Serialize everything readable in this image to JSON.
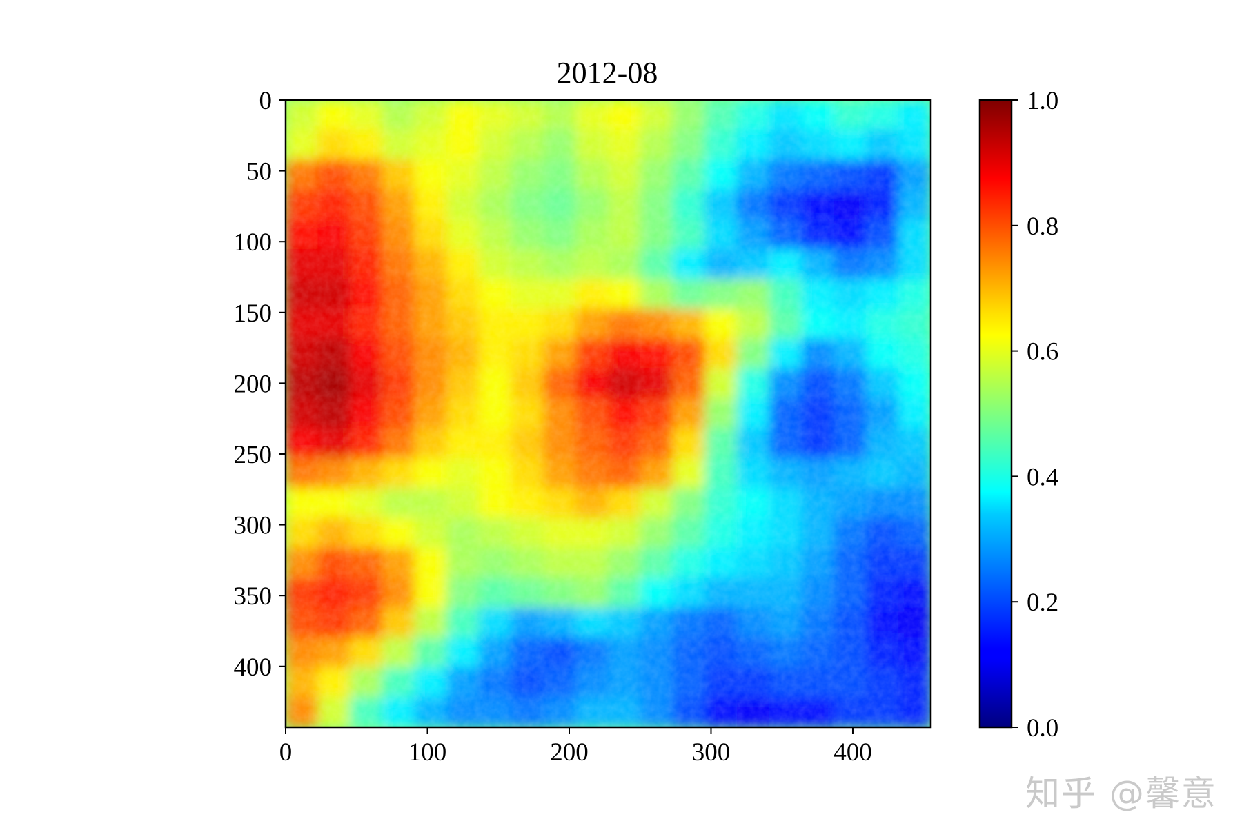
{
  "chart_data": {
    "type": "heatmap",
    "title": "2012-08",
    "xlabel": "",
    "ylabel": "",
    "x_ticks": [
      0,
      100,
      200,
      300,
      400
    ],
    "y_ticks": [
      0,
      50,
      100,
      150,
      200,
      250,
      300,
      350,
      400
    ],
    "xlim": [
      0,
      455
    ],
    "ylim": [
      443,
      0
    ],
    "colormap": "jet",
    "colorbar": {
      "ticks": [
        "0.0",
        "0.2",
        "0.4",
        "0.6",
        "0.8",
        "1.0"
      ],
      "vmin": 0.0,
      "vmax": 1.0
    },
    "grid": false,
    "grid_values": [
      [
        0.58,
        0.62,
        0.6,
        0.55,
        0.58,
        0.62,
        0.6,
        0.58,
        0.55,
        0.6,
        0.62,
        0.58,
        0.52,
        0.45,
        0.4,
        0.35,
        0.38,
        0.42,
        0.4,
        0.36
      ],
      [
        0.6,
        0.66,
        0.64,
        0.58,
        0.6,
        0.62,
        0.58,
        0.55,
        0.52,
        0.58,
        0.6,
        0.55,
        0.5,
        0.42,
        0.36,
        0.32,
        0.34,
        0.36,
        0.32,
        0.35
      ],
      [
        0.76,
        0.8,
        0.76,
        0.68,
        0.62,
        0.6,
        0.56,
        0.52,
        0.5,
        0.55,
        0.58,
        0.52,
        0.46,
        0.38,
        0.3,
        0.24,
        0.22,
        0.2,
        0.18,
        0.28
      ],
      [
        0.82,
        0.84,
        0.8,
        0.72,
        0.64,
        0.58,
        0.54,
        0.5,
        0.48,
        0.52,
        0.56,
        0.5,
        0.42,
        0.32,
        0.24,
        0.18,
        0.14,
        0.12,
        0.16,
        0.3
      ],
      [
        0.86,
        0.88,
        0.82,
        0.74,
        0.66,
        0.6,
        0.56,
        0.52,
        0.5,
        0.54,
        0.56,
        0.5,
        0.44,
        0.34,
        0.28,
        0.22,
        0.16,
        0.14,
        0.2,
        0.34
      ],
      [
        0.9,
        0.9,
        0.84,
        0.76,
        0.7,
        0.64,
        0.58,
        0.56,
        0.54,
        0.56,
        0.54,
        0.46,
        0.36,
        0.3,
        0.32,
        0.36,
        0.3,
        0.24,
        0.26,
        0.34
      ],
      [
        0.92,
        0.92,
        0.86,
        0.78,
        0.72,
        0.66,
        0.62,
        0.6,
        0.6,
        0.64,
        0.62,
        0.54,
        0.48,
        0.5,
        0.52,
        0.44,
        0.36,
        0.34,
        0.36,
        0.4
      ],
      [
        0.9,
        0.9,
        0.84,
        0.78,
        0.72,
        0.68,
        0.64,
        0.64,
        0.66,
        0.72,
        0.76,
        0.74,
        0.7,
        0.62,
        0.56,
        0.46,
        0.38,
        0.36,
        0.4,
        0.42
      ],
      [
        0.92,
        0.94,
        0.88,
        0.8,
        0.74,
        0.7,
        0.64,
        0.66,
        0.72,
        0.82,
        0.88,
        0.86,
        0.8,
        0.66,
        0.5,
        0.36,
        0.26,
        0.3,
        0.38,
        0.4
      ],
      [
        0.94,
        0.96,
        0.9,
        0.82,
        0.74,
        0.68,
        0.62,
        0.68,
        0.78,
        0.88,
        0.92,
        0.9,
        0.78,
        0.58,
        0.4,
        0.26,
        0.2,
        0.24,
        0.32,
        0.38
      ],
      [
        0.92,
        0.94,
        0.88,
        0.8,
        0.72,
        0.66,
        0.62,
        0.66,
        0.74,
        0.8,
        0.86,
        0.82,
        0.72,
        0.52,
        0.36,
        0.22,
        0.18,
        0.22,
        0.28,
        0.36
      ],
      [
        0.88,
        0.9,
        0.84,
        0.76,
        0.68,
        0.64,
        0.64,
        0.68,
        0.74,
        0.78,
        0.82,
        0.78,
        0.66,
        0.46,
        0.32,
        0.22,
        0.18,
        0.22,
        0.3,
        0.32
      ],
      [
        0.76,
        0.74,
        0.7,
        0.66,
        0.62,
        0.6,
        0.62,
        0.66,
        0.72,
        0.76,
        0.78,
        0.72,
        0.6,
        0.44,
        0.34,
        0.3,
        0.28,
        0.3,
        0.32,
        0.3
      ],
      [
        0.62,
        0.62,
        0.6,
        0.56,
        0.56,
        0.58,
        0.62,
        0.64,
        0.66,
        0.7,
        0.66,
        0.58,
        0.5,
        0.42,
        0.38,
        0.34,
        0.3,
        0.28,
        0.26,
        0.26
      ],
      [
        0.66,
        0.7,
        0.66,
        0.62,
        0.58,
        0.54,
        0.56,
        0.58,
        0.6,
        0.6,
        0.58,
        0.52,
        0.46,
        0.4,
        0.36,
        0.34,
        0.3,
        0.24,
        0.2,
        0.22
      ],
      [
        0.74,
        0.8,
        0.78,
        0.72,
        0.62,
        0.54,
        0.52,
        0.54,
        0.56,
        0.56,
        0.52,
        0.46,
        0.4,
        0.36,
        0.34,
        0.32,
        0.28,
        0.22,
        0.18,
        0.18
      ],
      [
        0.82,
        0.84,
        0.82,
        0.74,
        0.62,
        0.5,
        0.46,
        0.48,
        0.5,
        0.52,
        0.46,
        0.38,
        0.34,
        0.3,
        0.3,
        0.3,
        0.26,
        0.22,
        0.16,
        0.14
      ],
      [
        0.8,
        0.82,
        0.78,
        0.68,
        0.56,
        0.44,
        0.34,
        0.28,
        0.3,
        0.34,
        0.32,
        0.28,
        0.24,
        0.22,
        0.26,
        0.28,
        0.24,
        0.2,
        0.14,
        0.12
      ],
      [
        0.74,
        0.72,
        0.66,
        0.56,
        0.46,
        0.36,
        0.28,
        0.22,
        0.2,
        0.24,
        0.28,
        0.26,
        0.22,
        0.2,
        0.22,
        0.24,
        0.22,
        0.2,
        0.16,
        0.14
      ],
      [
        0.7,
        0.64,
        0.54,
        0.44,
        0.36,
        0.28,
        0.24,
        0.2,
        0.22,
        0.26,
        0.28,
        0.26,
        0.22,
        0.18,
        0.18,
        0.2,
        0.2,
        0.2,
        0.18,
        0.16
      ],
      [
        0.74,
        0.58,
        0.44,
        0.36,
        0.3,
        0.26,
        0.26,
        0.24,
        0.26,
        0.3,
        0.3,
        0.26,
        0.2,
        0.14,
        0.12,
        0.14,
        0.14,
        0.18,
        0.18,
        0.16
      ]
    ]
  },
  "watermark_text": "知乎 @馨意"
}
